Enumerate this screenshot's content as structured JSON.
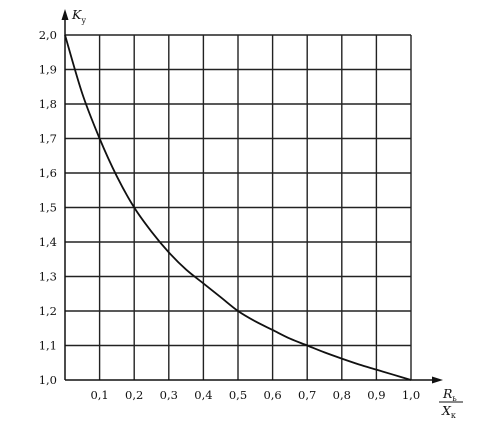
{
  "chart_data": {
    "type": "line",
    "xlabel": {
      "num_main": "R",
      "num_sub": "ь",
      "den_main": "X",
      "den_sub": "к"
    },
    "ylabel": {
      "main": "K",
      "sub": "у"
    },
    "xlim": [
      0,
      1.0
    ],
    "ylim": [
      1.0,
      2.0
    ],
    "grid": true,
    "x_ticks": [
      "0,1",
      "0,2",
      "0,3",
      "0,4",
      "0,5",
      "0,6",
      "0,7",
      "0,8",
      "0,9",
      "1,0"
    ],
    "y_ticks": [
      "1,0",
      "1,1",
      "1,2",
      "1,3",
      "1,4",
      "1,5",
      "1,6",
      "1,7",
      "1,8",
      "1,9",
      "2,0"
    ],
    "series": [
      {
        "color": "#111111",
        "x": [
          0.0,
          0.05,
          0.1,
          0.15,
          0.2,
          0.25,
          0.3,
          0.35,
          0.4,
          0.45,
          0.5,
          0.55,
          0.6,
          0.65,
          0.7,
          0.75,
          0.8,
          0.85,
          0.9,
          0.95,
          1.0
        ],
        "y": [
          2.0,
          1.83,
          1.7,
          1.59,
          1.5,
          1.43,
          1.37,
          1.32,
          1.28,
          1.24,
          1.2,
          1.17,
          1.145,
          1.12,
          1.1,
          1.08,
          1.062,
          1.045,
          1.03,
          1.015,
          1.0
        ]
      }
    ]
  }
}
